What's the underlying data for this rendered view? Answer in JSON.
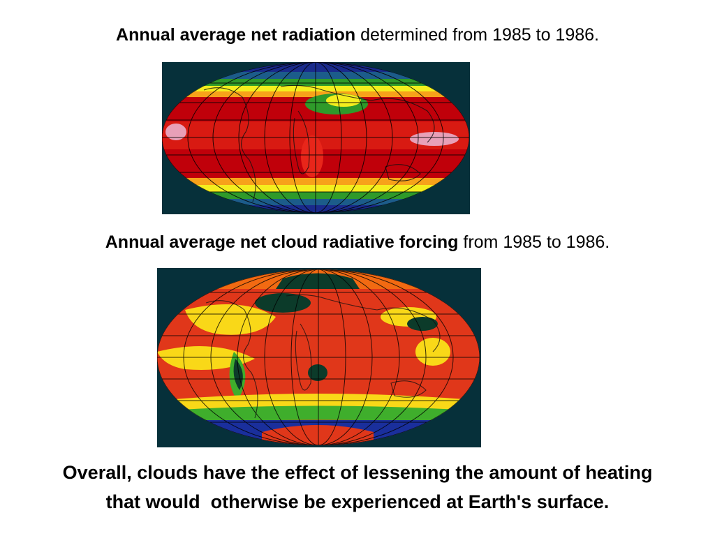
{
  "slide": {
    "caption1": {
      "bold": "Annual average net radiation",
      "rest": " determined from 1985 to 1986."
    },
    "caption2": {
      "bold": "Annual average net cloud radiative forcing",
      "rest": " from 1985 to 1986."
    },
    "conclusion": {
      "line1": "Overall, clouds have the effect of lessening the amount of heating",
      "line2": "that would  otherwise be experienced at Earth's surface."
    }
  },
  "maps": {
    "net_radiation": {
      "icon": "world-map-net-radiation",
      "colors": [
        "#c0000a",
        "#e8261a",
        "#f7a21a",
        "#f4ee1e",
        "#2f9a2a",
        "#1c5c8a",
        "#1a2a8c"
      ]
    },
    "cloud_forcing": {
      "icon": "world-map-cloud-forcing",
      "colors": [
        "#e0371a",
        "#f26a12",
        "#f9d818",
        "#3fae2c",
        "#0c3b2a",
        "#1a2f9c"
      ]
    }
  }
}
